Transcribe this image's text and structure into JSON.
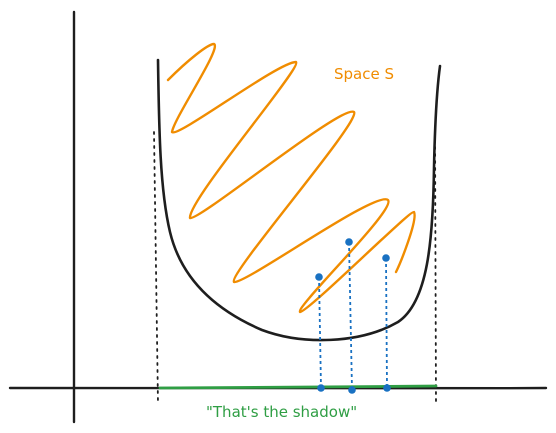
{
  "labels": {
    "space": "Space S",
    "shadow": "\"That's the shadow\""
  },
  "colors": {
    "axis": "#1e1e1e",
    "region_outline": "#1e1e1e",
    "scribble": "#f08c00",
    "space_label": "#f08c00",
    "projection": "#1971c2",
    "shadow": "#2f9e44",
    "guide_lines": "#1e1e1e"
  }
}
